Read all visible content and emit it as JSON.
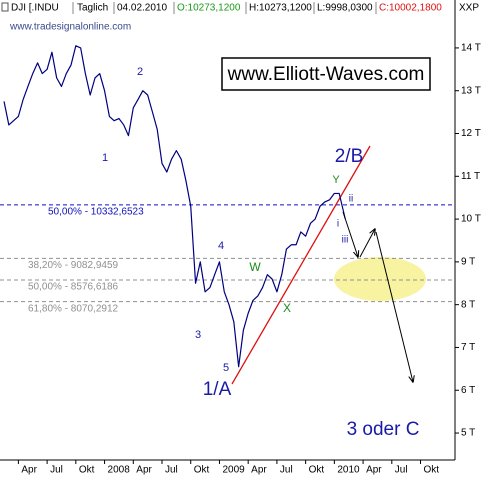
{
  "header": {
    "symbol": "DJI [.INDU",
    "interval": "Taglich",
    "date": "04.02.2010",
    "open": "O:10273,1200",
    "high": "H:10273,1200",
    "low": "L:9998,0300",
    "close": "C:10002,1800",
    "corner": "XXP"
  },
  "watermark": "www.tradesignalonline.com",
  "brand": "www.Elliott-Waves.com",
  "chart_data": {
    "type": "line",
    "color": "#000080",
    "x": [
      2007.125,
      2007.167,
      2007.208,
      2007.25,
      2007.292,
      2007.333,
      2007.375,
      2007.417,
      2007.458,
      2007.5,
      2007.542,
      2007.583,
      2007.625,
      2007.667,
      2007.708,
      2007.75,
      2007.792,
      2007.833,
      2007.875,
      2007.917,
      2007.958,
      2008.0,
      2008.042,
      2008.083,
      2008.125,
      2008.167,
      2008.208,
      2008.25,
      2008.292,
      2008.333,
      2008.375,
      2008.417,
      2008.458,
      2008.5,
      2008.542,
      2008.583,
      2008.625,
      2008.667,
      2008.708,
      2008.75,
      2008.792,
      2008.833,
      2008.875,
      2008.917,
      2008.958,
      2009.0,
      2009.042,
      2009.083,
      2009.125,
      2009.167,
      2009.208,
      2009.25,
      2009.292,
      2009.333,
      2009.375,
      2009.417,
      2009.458,
      2009.5,
      2009.542,
      2009.583,
      2009.625,
      2009.667,
      2009.708,
      2009.75,
      2009.792,
      2009.833,
      2009.875,
      2009.917,
      2009.958,
      2010.0,
      2010.042,
      2010.095
    ],
    "values": [
      12750,
      12200,
      12300,
      12400,
      12800,
      13100,
      13400,
      13650,
      13400,
      13500,
      13900,
      13300,
      13100,
      13400,
      13600,
      14050,
      14000,
      13400,
      12900,
      13300,
      13400,
      13000,
      12400,
      12300,
      12350,
      12200,
      11950,
      12600,
      12800,
      13000,
      12900,
      12500,
      12100,
      11300,
      11100,
      11400,
      11600,
      11400,
      10900,
      10300,
      8500,
      9000,
      8300,
      8400,
      8700,
      9000,
      8300,
      8000,
      7600,
      6550,
      7400,
      7800,
      8100,
      8200,
      8400,
      8700,
      8600,
      8300,
      8700,
      9300,
      9400,
      9400,
      9700,
      9600,
      9900,
      10000,
      10300,
      10400,
      10450,
      10600,
      10600,
      10002.18
    ],
    "xlim": [
      2007.09,
      2011.05
    ],
    "xticks": [
      {
        "value": 2007.25,
        "label": "Apr"
      },
      {
        "value": 2007.5,
        "label": "Jul"
      },
      {
        "value": 2007.75,
        "label": "Okt"
      },
      {
        "value": 2008,
        "label": "2008"
      },
      {
        "value": 2008.25,
        "label": "Apr"
      },
      {
        "value": 2008.5,
        "label": "Jul"
      },
      {
        "value": 2008.75,
        "label": "Okt"
      },
      {
        "value": 2009,
        "label": "2009"
      },
      {
        "value": 2009.25,
        "label": "Apr"
      },
      {
        "value": 2009.5,
        "label": "Jul"
      },
      {
        "value": 2009.75,
        "label": "Okt"
      },
      {
        "value": 2010,
        "label": "2010"
      },
      {
        "value": 2010.25,
        "label": "Apr"
      },
      {
        "value": 2010.5,
        "label": "Jul"
      },
      {
        "value": 2010.75,
        "label": "Okt"
      }
    ],
    "ylim": [
      4370,
      15120
    ],
    "yticks": [
      {
        "value": 5000,
        "label": "5 T"
      },
      {
        "value": 6000,
        "label": "6 T"
      },
      {
        "value": 7000,
        "label": "7 T"
      },
      {
        "value": 8000,
        "label": "8 T"
      },
      {
        "value": 9000,
        "label": "9 T"
      },
      {
        "value": 10000,
        "label": "10 T"
      },
      {
        "value": 11000,
        "label": "11 T"
      },
      {
        "value": 12000,
        "label": "12 T"
      },
      {
        "value": 13000,
        "label": "13 T"
      },
      {
        "value": 14000,
        "label": "14 T"
      }
    ],
    "levels": [
      {
        "value": 10332.6523,
        "label": "50,00% - 10332,6523",
        "color": "#1010c0"
      },
      {
        "value": 9082.9459,
        "label": "38,20% - 9082,9459",
        "color": "#909090"
      },
      {
        "value": 8576.6186,
        "label": "50,00% - 8576,6186",
        "color": "#909090"
      },
      {
        "value": 8070.2912,
        "label": "61,80% - 8070,2912",
        "color": "#909090"
      }
    ],
    "annotations": [
      {
        "text": "1",
        "color": "#1a1aa8"
      },
      {
        "text": "2",
        "color": "#1a1aa8"
      },
      {
        "text": "3",
        "color": "#1a1aa8"
      },
      {
        "text": "4",
        "color": "#1a1aa8"
      },
      {
        "text": "5",
        "color": "#1a1aa8"
      },
      {
        "text": "1/A",
        "color": "#1a1aa8"
      },
      {
        "text": "2/B",
        "color": "#1a1aa8"
      },
      {
        "text": "W",
        "color": "#1a8a1a"
      },
      {
        "text": "X",
        "color": "#1a8a1a"
      },
      {
        "text": "Y",
        "color": "#1a8a1a"
      },
      {
        "text": "i",
        "color": "#1a1aa8"
      },
      {
        "text": "ii",
        "color": "#1a1aa8"
      },
      {
        "text": "iii",
        "color": "#1a1aa8"
      },
      {
        "text": "3 oder C",
        "color": "#1a1aa8"
      }
    ]
  }
}
